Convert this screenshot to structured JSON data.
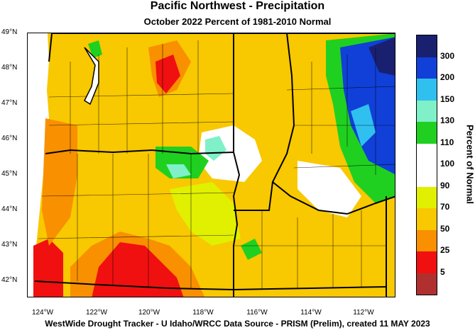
{
  "title": "Pacific Northwest - Precipitation",
  "subtitle": "October 2022  Percent of 1981-2010 Normal",
  "footer": "WestWide Drought Tracker - U Idaho/WRCC  Data Source - PRISM (Prelim), created 11 MAY 2023",
  "latitude_labels": [
    "49°N",
    "48°N",
    "47°N",
    "46°N",
    "45°N",
    "44°N",
    "43°N",
    "42°N"
  ],
  "longitude_labels": [
    "124°W",
    "122°W",
    "120°W",
    "118°W",
    "116°W",
    "114°W",
    "112°W"
  ],
  "legend": {
    "title": "Percent of Normal",
    "bins": [
      {
        "label": "300",
        "color": "#1a2070"
      },
      {
        "label": "200",
        "color": "#1040d8"
      },
      {
        "label": "150",
        "color": "#30c0f0"
      },
      {
        "label": "130",
        "color": "#80f0c8"
      },
      {
        "label": "110",
        "color": "#20d020"
      },
      {
        "label": "100",
        "color": "#ffffff"
      },
      {
        "label": "90",
        "color": "#ffffff"
      },
      {
        "label": "70",
        "color": "#e0f000"
      },
      {
        "label": "50",
        "color": "#f8c800"
      },
      {
        "label": "25",
        "color": "#f89000"
      },
      {
        "label": "5",
        "color": "#f01010"
      },
      {
        "label": "",
        "color": "#b03030"
      }
    ]
  }
}
